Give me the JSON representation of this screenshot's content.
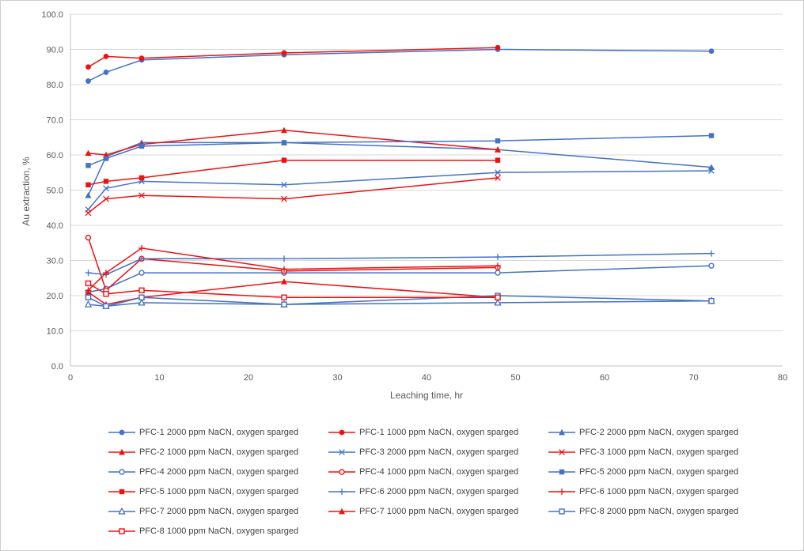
{
  "chart_data": {
    "type": "line",
    "title": "",
    "xlabel": "Leaching time, hr",
    "ylabel": "Au extraction, %",
    "xlim": [
      0,
      80
    ],
    "ylim": [
      0,
      100
    ],
    "xticks": [
      0,
      10,
      20,
      30,
      40,
      50,
      60,
      70,
      80
    ],
    "yticks": [
      0,
      10,
      20,
      30,
      40,
      50,
      60,
      70,
      80,
      90,
      100
    ],
    "grid": "horizontal",
    "legend_position": "bottom",
    "palette": {
      "blue": "#4472C4",
      "red": "#EE1111"
    },
    "x": [
      2,
      4,
      8,
      24,
      48,
      72
    ],
    "series": [
      {
        "name": "PFC-1 2000 ppm NaCN, oxygen sparged",
        "color": "blue",
        "marker": "circle-filled",
        "values": [
          81.0,
          83.5,
          87.0,
          88.5,
          90.0,
          89.5
        ]
      },
      {
        "name": "PFC-1 1000 ppm NaCN, oxygen sparged",
        "color": "red",
        "marker": "circle-filled",
        "values": [
          85.0,
          88.0,
          87.5,
          89.0,
          90.5,
          null
        ]
      },
      {
        "name": "PFC-2 2000 ppm NaCN, oxygen sparged",
        "color": "blue",
        "marker": "triangle-filled",
        "values": [
          48.5,
          59.5,
          63.5,
          63.5,
          61.5,
          56.5
        ]
      },
      {
        "name": "PFC-2 1000 ppm NaCN, oxygen sparged",
        "color": "red",
        "marker": "triangle-filled",
        "values": [
          60.5,
          60.0,
          63.0,
          67.0,
          61.5,
          null
        ]
      },
      {
        "name": "PFC-3 2000 ppm NaCN, oxygen sparged",
        "color": "blue",
        "marker": "x",
        "values": [
          44.5,
          50.5,
          52.5,
          51.5,
          55.0,
          55.5
        ]
      },
      {
        "name": "PFC-3 1000 ppm NaCN, oxygen sparged",
        "color": "red",
        "marker": "x",
        "values": [
          43.5,
          47.5,
          48.5,
          47.5,
          53.5,
          null
        ]
      },
      {
        "name": "PFC-4 2000 ppm NaCN, oxygen sparged",
        "color": "blue",
        "marker": "circle-open",
        "values": [
          21.0,
          22.0,
          26.5,
          26.5,
          26.5,
          28.5
        ]
      },
      {
        "name": "PFC-4 1000 ppm NaCN, oxygen sparged",
        "color": "red",
        "marker": "circle-open",
        "values": [
          36.5,
          21.5,
          30.5,
          27.0,
          28.0,
          null
        ]
      },
      {
        "name": "PFC-5 2000 ppm NaCN, oxygen sparged",
        "color": "blue",
        "marker": "square-filled",
        "values": [
          57.0,
          59.0,
          62.5,
          63.5,
          64.0,
          65.5
        ]
      },
      {
        "name": "PFC-5 1000 ppm NaCN, oxygen sparged",
        "color": "red",
        "marker": "square-filled",
        "values": [
          51.5,
          52.5,
          53.5,
          58.5,
          58.5,
          null
        ]
      },
      {
        "name": "PFC-6 2000 ppm NaCN, oxygen sparged",
        "color": "blue",
        "marker": "plus",
        "values": [
          26.5,
          26.0,
          30.5,
          30.5,
          31.0,
          32.0
        ]
      },
      {
        "name": "PFC-6 1000 ppm NaCN, oxygen sparged",
        "color": "red",
        "marker": "plus",
        "values": [
          21.5,
          26.5,
          33.5,
          27.5,
          28.5,
          null
        ]
      },
      {
        "name": "PFC-7 2000 ppm NaCN, oxygen sparged",
        "color": "blue",
        "marker": "triangle-open",
        "values": [
          17.5,
          17.0,
          18.0,
          17.5,
          18.0,
          18.5
        ]
      },
      {
        "name": "PFC-7 1000 ppm NaCN, oxygen sparged",
        "color": "red",
        "marker": "triangle-filled",
        "values": [
          21.0,
          17.5,
          19.5,
          24.0,
          19.5,
          null
        ]
      },
      {
        "name": "PFC-8 2000 ppm NaCN, oxygen sparged",
        "color": "blue",
        "marker": "square-open",
        "values": [
          19.5,
          17.0,
          19.5,
          17.5,
          20.0,
          18.5
        ]
      },
      {
        "name": "PFC-8 1000 ppm NaCN, oxygen sparged",
        "color": "red",
        "marker": "square-open",
        "values": [
          23.5,
          20.5,
          21.5,
          19.5,
          19.5,
          null
        ]
      }
    ]
  }
}
